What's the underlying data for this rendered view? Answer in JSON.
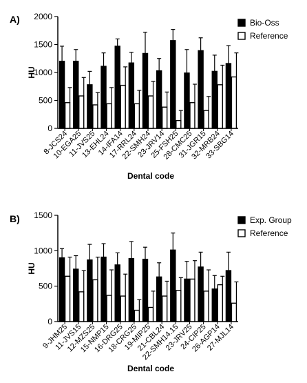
{
  "chart_data": [
    {
      "type": "bar",
      "panel_label": "A)",
      "xlabel": "Dental code",
      "ylabel": "HU",
      "ylim": [
        0,
        2000
      ],
      "yticks": [
        0,
        500,
        1000,
        1500,
        2000
      ],
      "grid": false,
      "legend_position": "top-right",
      "categories": [
        "8-JCS24",
        "10-EGA25",
        "11-JVS25",
        "13-EHL24",
        "14-IFA14",
        "17-RRL24",
        "22-SMH24",
        "23-JRV14",
        "25-FSH25",
        "28-CMC25",
        "31-JGR15",
        "32-MRB24",
        "33-SBG14"
      ],
      "series": [
        {
          "name": "Bio-Oss",
          "color": "#000000",
          "values": [
            1200,
            1200,
            780,
            1110,
            1470,
            1170,
            1340,
            1030,
            1570,
            990,
            1390,
            1020,
            1160
          ],
          "errors": [
            270,
            210,
            240,
            240,
            130,
            190,
            380,
            220,
            200,
            420,
            230,
            290,
            320
          ]
        },
        {
          "name": "Reference",
          "color": "#ffffff",
          "values": [
            460,
            580,
            420,
            440,
            770,
            440,
            580,
            380,
            140,
            460,
            320,
            780,
            920
          ],
          "errors": [
            270,
            330,
            220,
            290,
            330,
            240,
            260,
            270,
            180,
            330,
            250,
            350,
            430
          ]
        }
      ]
    },
    {
      "type": "bar",
      "panel_label": "B)",
      "xlabel": "Dental code",
      "ylabel": "HU",
      "ylim": [
        0,
        1500
      ],
      "yticks": [
        0,
        500,
        1000,
        1500
      ],
      "grid": false,
      "legend_position": "top-right",
      "categories": [
        "9-JHM25",
        "11-JVS15",
        "12-MZS25",
        "15-NMP15",
        "16-DRG25",
        "18-CRG25",
        "19-MIP25",
        "21-CBL24",
        "22-SMH14.15",
        "23-JRV25",
        "24-CIP25",
        "26-AGP14",
        "27-MJL14"
      ],
      "series": [
        {
          "name": "Exp. Group",
          "color": "#000000",
          "values": [
            900,
            740,
            870,
            910,
            800,
            890,
            880,
            630,
            1010,
            600,
            770,
            460,
            720
          ],
          "errors": [
            130,
            190,
            220,
            190,
            170,
            240,
            170,
            200,
            240,
            250,
            210,
            190,
            260
          ]
        },
        {
          "name": "Reference",
          "color": "#ffffff",
          "values": [
            640,
            420,
            590,
            370,
            360,
            160,
            200,
            360,
            440,
            600,
            430,
            520,
            260
          ],
          "errors": [
            270,
            300,
            320,
            360,
            310,
            150,
            230,
            210,
            180,
            260,
            300,
            120,
            300
          ]
        }
      ]
    }
  ]
}
